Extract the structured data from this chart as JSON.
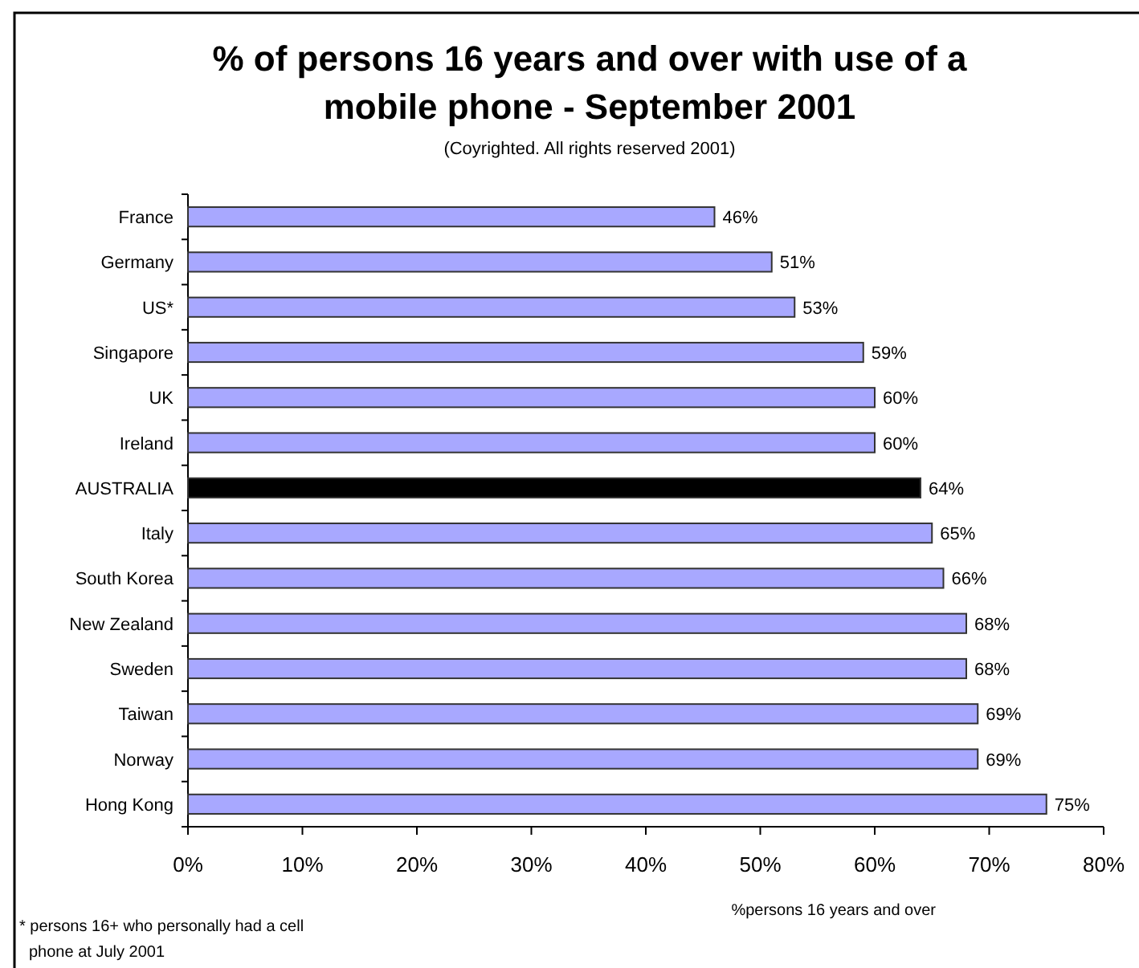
{
  "chart_data": {
    "type": "bar",
    "orientation": "horizontal",
    "title": "% of persons 16 years and over with use of a mobile phone - September 2001",
    "subtitle": "(Coyrighted. All rights reserved 2001)",
    "xlabel": "%persons 16 years and over",
    "categories": [
      "France",
      "Germany",
      "US*",
      "Singapore",
      "UK",
      "Ireland",
      "AUSTRALIA",
      "Italy",
      "South Korea",
      "New Zealand",
      "Sweden",
      "Taiwan",
      "Norway",
      "Hong Kong"
    ],
    "values": [
      46,
      51,
      53,
      59,
      60,
      60,
      64,
      65,
      66,
      68,
      68,
      69,
      69,
      75
    ],
    "colors": [
      "#a8a8ff",
      "#a8a8ff",
      "#a8a8ff",
      "#a8a8ff",
      "#a8a8ff",
      "#a8a8ff",
      "#000000",
      "#a8a8ff",
      "#a8a8ff",
      "#a8a8ff",
      "#a8a8ff",
      "#a8a8ff",
      "#a8a8ff",
      "#a8a8ff"
    ],
    "value_labels": [
      "46%",
      "51%",
      "53%",
      "59%",
      "60%",
      "60%",
      "64%",
      "65%",
      "66%",
      "68%",
      "68%",
      "69%",
      "69%",
      "75%"
    ],
    "xlim": [
      0,
      80
    ],
    "xticks": [
      {
        "value": 0,
        "label": "0%"
      },
      {
        "value": 10,
        "label": "10%"
      },
      {
        "value": 20,
        "label": "20%"
      },
      {
        "value": 30,
        "label": "30%"
      },
      {
        "value": 40,
        "label": "40%"
      },
      {
        "value": 50,
        "label": "50%"
      },
      {
        "value": 60,
        "label": "60%"
      },
      {
        "value": 70,
        "label": "70%"
      },
      {
        "value": 80,
        "label": "80%"
      }
    ],
    "annotations": [
      "* persons 16+ who personally had a cell phone at July 2001"
    ]
  }
}
